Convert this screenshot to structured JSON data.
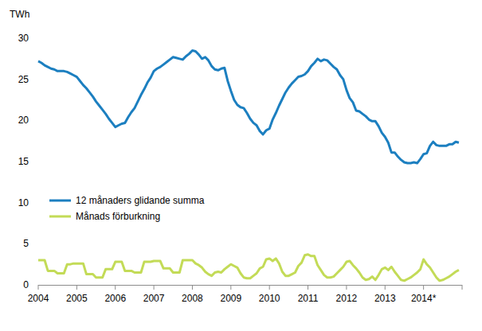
{
  "chart_data": {
    "type": "line",
    "y_label": "TWh",
    "categories": [
      "2004",
      null,
      null,
      null,
      null,
      null,
      null,
      null,
      null,
      null,
      null,
      null,
      "2005",
      null,
      null,
      null,
      null,
      null,
      null,
      null,
      null,
      null,
      null,
      null,
      "2006",
      null,
      null,
      null,
      null,
      null,
      null,
      null,
      null,
      null,
      null,
      null,
      "2007",
      null,
      null,
      null,
      null,
      null,
      null,
      null,
      null,
      null,
      null,
      null,
      "2008",
      null,
      null,
      null,
      null,
      null,
      null,
      null,
      null,
      null,
      null,
      null,
      "2009",
      null,
      null,
      null,
      null,
      null,
      null,
      null,
      null,
      null,
      null,
      null,
      "2010",
      null,
      null,
      null,
      null,
      null,
      null,
      null,
      null,
      null,
      null,
      null,
      "2011",
      null,
      null,
      null,
      null,
      null,
      null,
      null,
      null,
      null,
      null,
      null,
      "2012",
      null,
      null,
      null,
      null,
      null,
      null,
      null,
      null,
      null,
      null,
      null,
      "2013",
      null,
      null,
      null,
      null,
      null,
      null,
      null,
      null,
      null,
      null,
      null,
      "2014*",
      null,
      null,
      null,
      null,
      null,
      null,
      null,
      null,
      null,
      null,
      null
    ],
    "series": [
      {
        "name": "12 månaders glidande summa",
        "color": "#1c7fc0",
        "values": [
          27.2,
          27.0,
          26.7,
          26.5,
          26.3,
          26.2,
          26.0,
          26.0,
          26.0,
          25.9,
          25.7,
          25.5,
          25.3,
          24.8,
          24.3,
          23.9,
          23.4,
          22.9,
          22.3,
          21.8,
          21.3,
          20.8,
          20.2,
          19.7,
          19.2,
          19.4,
          19.6,
          19.7,
          20.4,
          21.0,
          21.5,
          22.3,
          23.1,
          23.8,
          24.6,
          25.2,
          26.0,
          26.3,
          26.5,
          26.8,
          27.1,
          27.4,
          27.7,
          27.6,
          27.5,
          27.4,
          27.8,
          28.1,
          28.5,
          28.4,
          28.0,
          27.5,
          27.7,
          27.3,
          26.6,
          26.2,
          26.1,
          26.3,
          26.4,
          24.8,
          23.6,
          22.5,
          21.9,
          21.6,
          21.5,
          20.9,
          20.2,
          19.7,
          19.4,
          18.7,
          18.3,
          18.8,
          19.0,
          20.1,
          20.9,
          21.8,
          22.6,
          23.4,
          24.0,
          24.5,
          24.9,
          25.3,
          25.4,
          25.6,
          26.0,
          26.6,
          27.0,
          27.5,
          27.2,
          27.4,
          27.3,
          26.9,
          26.5,
          26.2,
          25.5,
          25.0,
          23.7,
          22.7,
          22.2,
          21.2,
          21.1,
          20.8,
          20.5,
          20.1,
          19.9,
          19.9,
          19.3,
          18.5,
          18.0,
          17.3,
          16.1,
          16.1,
          15.6,
          15.2,
          14.9,
          14.8,
          14.8,
          14.9,
          14.8,
          15.3,
          15.9,
          16.0,
          16.9,
          17.4,
          17.0,
          16.9,
          16.9,
          16.9,
          17.1,
          17.1,
          17.4,
          17.3
        ]
      },
      {
        "name": "Månads förburkning",
        "color": "#c3db57",
        "values": [
          3.0,
          3.0,
          3.0,
          1.7,
          1.7,
          1.7,
          1.4,
          1.4,
          1.4,
          2.5,
          2.5,
          2.6,
          2.6,
          2.6,
          2.6,
          1.3,
          1.3,
          1.3,
          0.9,
          0.9,
          0.9,
          1.9,
          1.9,
          1.9,
          2.8,
          2.8,
          2.8,
          1.7,
          1.7,
          1.7,
          1.5,
          1.5,
          1.5,
          2.8,
          2.8,
          2.8,
          2.9,
          2.9,
          2.9,
          2.0,
          2.0,
          2.0,
          1.5,
          1.5,
          1.5,
          3.0,
          3.0,
          3.0,
          3.0,
          2.6,
          2.4,
          2.1,
          1.6,
          1.3,
          1.1,
          1.5,
          1.6,
          1.5,
          1.9,
          2.2,
          2.5,
          2.3,
          2.1,
          1.4,
          0.9,
          0.8,
          0.8,
          1.1,
          1.4,
          2.0,
          2.2,
          3.1,
          3.2,
          2.9,
          3.2,
          2.6,
          1.6,
          1.1,
          1.1,
          1.3,
          1.5,
          2.3,
          2.7,
          3.6,
          3.7,
          3.5,
          3.5,
          2.4,
          1.8,
          1.2,
          0.9,
          0.9,
          1.0,
          1.4,
          1.8,
          2.2,
          2.8,
          2.9,
          2.4,
          2.0,
          1.5,
          0.9,
          0.6,
          0.7,
          1.0,
          0.6,
          1.2,
          1.9,
          2.1,
          1.8,
          2.2,
          1.6,
          1.1,
          0.6,
          0.5,
          0.7,
          0.9,
          1.2,
          1.5,
          1.9,
          3.1,
          2.5,
          2.1,
          1.5,
          0.9,
          0.5,
          0.6,
          0.8,
          1.0,
          1.3,
          1.6,
          1.8
        ]
      }
    ],
    "ylim": [
      0,
      30
    ],
    "yticks": [
      0,
      5,
      10,
      15,
      20,
      25,
      30
    ],
    "grid": false,
    "legend": "left"
  }
}
